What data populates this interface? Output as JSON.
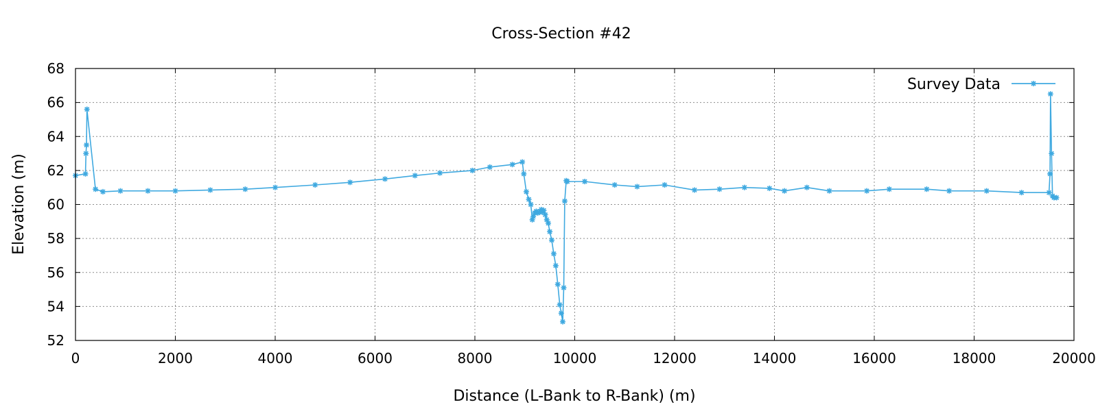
{
  "chart_data": {
    "type": "line",
    "title": "Cross-Section #42",
    "xlabel": "Distance (L-Bank to R-Bank) (m)",
    "ylabel": "Elevation (m)",
    "xlim": [
      0,
      20000
    ],
    "ylim": [
      52,
      68
    ],
    "xticks": [
      0,
      2000,
      4000,
      6000,
      8000,
      10000,
      12000,
      14000,
      16000,
      18000,
      20000
    ],
    "yticks": [
      52,
      54,
      56,
      58,
      60,
      62,
      64,
      66,
      68
    ],
    "grid": true,
    "legend_position": "top-right",
    "series": [
      {
        "name": "Survey Data",
        "color": "#3fa9e0",
        "marker": "asterisk",
        "x": [
          0,
          200,
          210,
          220,
          230,
          400,
          550,
          900,
          1450,
          2000,
          2700,
          3400,
          4000,
          4800,
          5500,
          6200,
          6800,
          7300,
          7950,
          8300,
          8750,
          8950,
          8980,
          9030,
          9080,
          9120,
          9150,
          9170,
          9200,
          9230,
          9260,
          9290,
          9310,
          9330,
          9350,
          9380,
          9410,
          9440,
          9470,
          9500,
          9540,
          9580,
          9620,
          9660,
          9700,
          9730,
          9760,
          9780,
          9800,
          9830,
          9850,
          10200,
          10800,
          11250,
          11800,
          12400,
          12900,
          13400,
          13900,
          14200,
          14650,
          15100,
          15850,
          16300,
          17050,
          17500,
          18250,
          18950,
          19500,
          19520,
          19530,
          19550,
          19570,
          19600,
          19650
        ],
        "y": [
          61.7,
          61.8,
          63.0,
          63.5,
          65.6,
          60.9,
          60.75,
          60.8,
          60.8,
          60.8,
          60.85,
          60.9,
          61.0,
          61.15,
          61.3,
          61.5,
          61.7,
          61.85,
          62.0,
          62.2,
          62.35,
          62.5,
          61.8,
          60.75,
          60.3,
          60.0,
          59.1,
          59.3,
          59.5,
          59.6,
          59.5,
          59.55,
          59.6,
          59.7,
          59.55,
          59.65,
          59.4,
          59.1,
          58.9,
          58.4,
          57.9,
          57.1,
          56.4,
          55.3,
          54.1,
          53.6,
          53.1,
          55.1,
          60.2,
          61.4,
          61.35,
          61.35,
          61.15,
          61.05,
          61.15,
          60.85,
          60.9,
          61.0,
          60.95,
          60.8,
          61.0,
          60.8,
          60.8,
          60.9,
          60.9,
          60.8,
          60.8,
          60.7,
          60.7,
          61.8,
          66.5,
          63.0,
          60.5,
          60.4,
          60.4
        ]
      }
    ]
  }
}
